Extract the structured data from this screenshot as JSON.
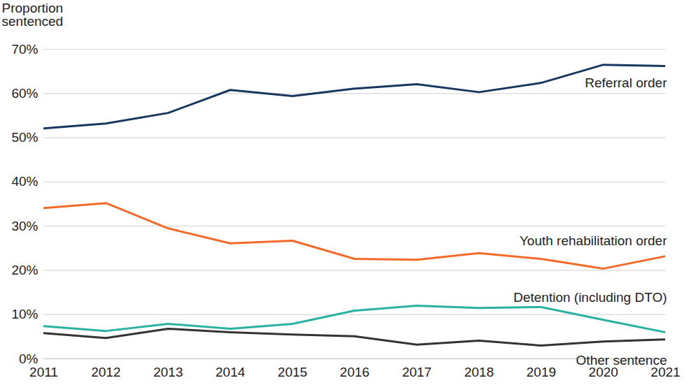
{
  "chart_data": {
    "type": "line",
    "y_label": "Proportion sentenced",
    "x": [
      2011,
      2012,
      2013,
      2014,
      2015,
      2016,
      2017,
      2018,
      2019,
      2020,
      2021
    ],
    "xlim": [
      2011,
      2021
    ],
    "xticks": [
      2011,
      2012,
      2013,
      2014,
      2015,
      2016,
      2017,
      2018,
      2019,
      2020,
      2021
    ],
    "ylim": [
      0,
      70
    ],
    "yticks": [
      {
        "value": 0,
        "label": "0%"
      },
      {
        "value": 10,
        "label": "10%"
      },
      {
        "value": 20,
        "label": "20%"
      },
      {
        "value": 30,
        "label": "30%"
      },
      {
        "value": 40,
        "label": "40%"
      },
      {
        "value": 50,
        "label": "50%"
      },
      {
        "value": 60,
        "label": "60%"
      },
      {
        "value": 70,
        "label": "70%"
      }
    ],
    "grid": true,
    "series": [
      {
        "name": "Referral order",
        "color": "#17375e",
        "values": [
          52.1,
          53.2,
          55.6,
          60.8,
          59.4,
          61.1,
          62.1,
          60.3,
          62.4,
          66.5,
          66.2
        ]
      },
      {
        "name": "Youth rehabilitation order",
        "color": "#f26b2a",
        "values": [
          34.1,
          35.2,
          29.5,
          26.1,
          26.7,
          22.6,
          22.4,
          23.9,
          22.6,
          20.4,
          23.2
        ]
      },
      {
        "name": "Detention (including DTO)",
        "color": "#2ab1a0",
        "values": [
          7.4,
          6.3,
          7.9,
          6.8,
          7.9,
          10.9,
          12.0,
          11.5,
          11.7,
          8.8,
          6.0
        ]
      },
      {
        "name": "Other sentence",
        "color": "#333333",
        "values": [
          5.8,
          4.7,
          6.8,
          6.0,
          5.5,
          5.1,
          3.2,
          4.1,
          3.0,
          3.9,
          4.4
        ]
      }
    ]
  }
}
